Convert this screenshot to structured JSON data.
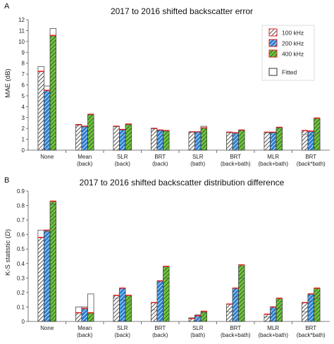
{
  "chart_data": [
    {
      "panel": "A",
      "type": "bar",
      "title": "2017 to 2016 shifted backscatter error",
      "ylabel": "MAE (dB)",
      "ylim": [
        0,
        12
      ],
      "yticks": [
        0,
        1,
        2,
        3,
        4,
        5,
        6,
        7,
        8,
        9,
        10,
        11,
        12
      ],
      "categories": [
        [
          "None"
        ],
        [
          "Mean",
          "(back)"
        ],
        [
          "SLR",
          "(back)"
        ],
        [
          "BRT",
          "(back)"
        ],
        [
          "SLR",
          "(bath)"
        ],
        [
          "BRT",
          "(back+bath)"
        ],
        [
          "MLR",
          "(back+bath)"
        ],
        [
          "BRT",
          "(back*bath)"
        ]
      ],
      "series": [
        {
          "name": "100 kHz",
          "values": [
            7.25,
            2.35,
            2.2,
            2.0,
            1.68,
            1.65,
            1.65,
            1.8
          ],
          "fitted": [
            7.7,
            2.3,
            2.15,
            1.95,
            1.65,
            1.6,
            1.6,
            1.45
          ]
        },
        {
          "name": "200 kHz",
          "values": [
            5.5,
            2.2,
            1.9,
            1.85,
            1.68,
            1.6,
            1.65,
            1.75
          ],
          "fitted": [
            5.9,
            2.15,
            1.85,
            1.8,
            1.65,
            1.55,
            1.6,
            1.4
          ]
        },
        {
          "name": "400 kHz",
          "values": [
            10.55,
            3.3,
            2.4,
            1.8,
            2.05,
            1.85,
            2.1,
            2.95
          ],
          "fitted": [
            11.2,
            3.25,
            2.35,
            1.75,
            2.2,
            1.8,
            2.05,
            1.5
          ]
        }
      ],
      "legend": {
        "position": "top-right",
        "fitted_label": "Fitted"
      },
      "grid": false
    },
    {
      "panel": "B",
      "type": "bar",
      "title": "2017 to 2016 shifted backscatter distribution difference",
      "ylabel": "K-S statistic (D)",
      "ylim": [
        0,
        0.9
      ],
      "yticks": [
        0,
        0.1,
        0.2,
        0.3,
        0.4,
        0.5,
        0.6,
        0.7,
        0.8,
        0.9
      ],
      "categories": [
        [
          "None"
        ],
        [
          "Mean",
          "(back)"
        ],
        [
          "SLR",
          "(back)"
        ],
        [
          "BRT",
          "(back)"
        ],
        [
          "SLR",
          "(bath)"
        ],
        [
          "BRT",
          "(back+bath)"
        ],
        [
          "MLR",
          "(back+bath)"
        ],
        [
          "BRT",
          "(back*bath)"
        ]
      ],
      "series": [
        {
          "name": "100 kHz",
          "values": [
            0.58,
            0.06,
            0.18,
            0.13,
            0.02,
            0.12,
            0.05,
            0.13
          ],
          "fitted": [
            0.63,
            0.1,
            0.16,
            0.08,
            0.025,
            0.065,
            0.03,
            0.065
          ]
        },
        {
          "name": "200 kHz",
          "values": [
            0.63,
            0.09,
            0.23,
            0.28,
            0.04,
            0.23,
            0.1,
            0.19
          ],
          "fitted": [
            0.62,
            0.1,
            0.15,
            0.21,
            0.045,
            0.17,
            0.05,
            0.14
          ]
        },
        {
          "name": "400 kHz",
          "values": [
            0.83,
            0.06,
            0.18,
            0.38,
            0.07,
            0.39,
            0.16,
            0.23
          ],
          "fitted": [
            0.81,
            0.19,
            0.13,
            0.3,
            0.06,
            0.3,
            0.09,
            0.16
          ]
        }
      ],
      "grid": false
    }
  ]
}
